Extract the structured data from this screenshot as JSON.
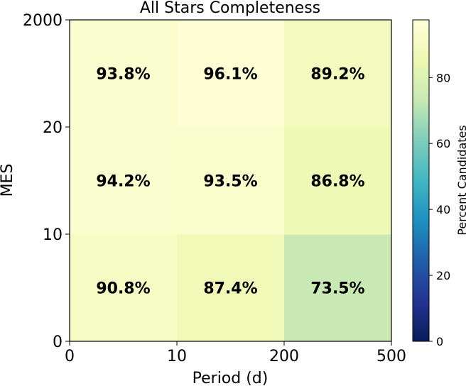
{
  "chart_data": {
    "type": "heatmap",
    "title": "All Stars Completeness",
    "xlabel": "Period (d)",
    "ylabel": "MES",
    "x_edges": [
      "0",
      "10",
      "200",
      "500"
    ],
    "y_edges": [
      "0",
      "10",
      "20",
      "2000"
    ],
    "rows": [
      {
        "mes_bin": "0-10",
        "values": [
          90.8,
          87.4,
          73.5
        ],
        "labels": [
          "90.8%",
          "87.4%",
          "73.5%"
        ]
      },
      {
        "mes_bin": "10-20",
        "values": [
          94.2,
          93.5,
          86.8
        ],
        "labels": [
          "94.2%",
          "93.5%",
          "86.8%"
        ]
      },
      {
        "mes_bin": "20-2000",
        "values": [
          93.8,
          96.1,
          89.2
        ],
        "labels": [
          "93.8%",
          "96.1%",
          "89.2%"
        ]
      }
    ],
    "colorbar": {
      "label": "Percent Candidates",
      "range": [
        0,
        97.5
      ],
      "ticks": [
        "0",
        "20",
        "40",
        "60",
        "80"
      ],
      "colormap": "YlGnBu"
    }
  }
}
